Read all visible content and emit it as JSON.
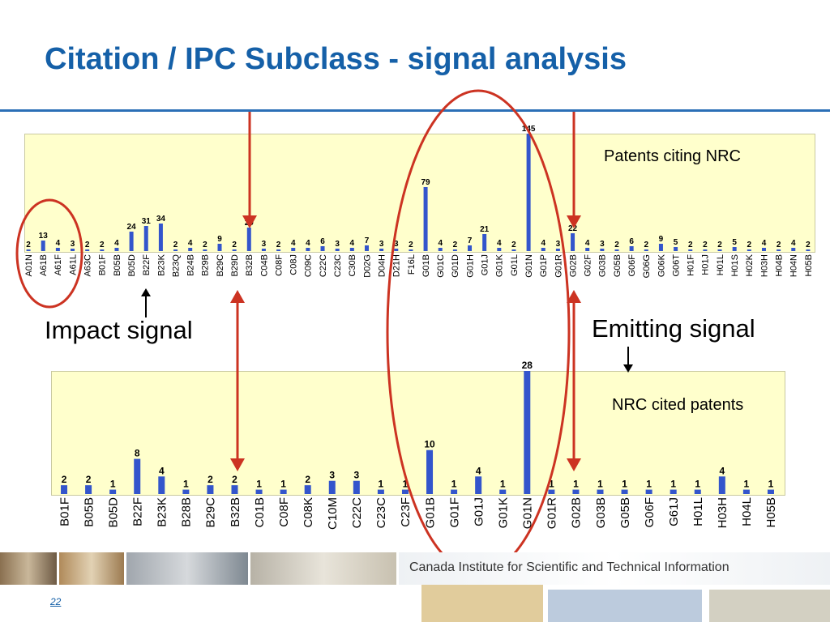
{
  "slide": {
    "title": "Citation / IPC Subclass - signal analysis",
    "page_number": "22",
    "footer_org": "Canada Institute for Scientific and Technical Information"
  },
  "annotations": {
    "impact_signal": "Impact signal",
    "emitting_signal": "Emitting signal"
  },
  "colors": {
    "title": "#1560a8",
    "bar": "#3355cc",
    "plot_bg": "#ffffcc",
    "highlight": "#cc3322"
  },
  "chart_data": [
    {
      "type": "bar",
      "title": "Patents citing NRC",
      "categories": [
        "A01N",
        "A61B",
        "A61F",
        "A61L",
        "A63C",
        "B01F",
        "B05B",
        "B05D",
        "B22F",
        "B23K",
        "B23Q",
        "B24B",
        "B29B",
        "B29C",
        "B29D",
        "B32B",
        "C04B",
        "C08F",
        "C08J",
        "C09C",
        "C22C",
        "C23C",
        "C30B",
        "D02G",
        "D04H",
        "D21H",
        "F16L",
        "G01B",
        "G01C",
        "G01D",
        "G01H",
        "G01J",
        "G01K",
        "G01L",
        "G01N",
        "G01P",
        "G01R",
        "G02B",
        "G02F",
        "G03B",
        "G05B",
        "G06F",
        "G06G",
        "G06K",
        "G06T",
        "H01F",
        "H01J",
        "H01L",
        "H01S",
        "H02K",
        "H03H",
        "H04B",
        "H04N",
        "H05B"
      ],
      "values": [
        2,
        13,
        4,
        3,
        2,
        2,
        4,
        24,
        31,
        34,
        2,
        4,
        2,
        9,
        2,
        29,
        3,
        2,
        4,
        4,
        6,
        3,
        4,
        7,
        3,
        3,
        2,
        79,
        4,
        2,
        7,
        21,
        4,
        2,
        145,
        4,
        3,
        22,
        4,
        3,
        2,
        6,
        2,
        9,
        5,
        2,
        2,
        2,
        5,
        2,
        4,
        2,
        4,
        2
      ],
      "ylim": [
        0,
        145
      ],
      "legend": "none",
      "grid": false
    },
    {
      "type": "bar",
      "title": "NRC cited patents",
      "categories": [
        "B01F",
        "B05B",
        "B05D",
        "B22F",
        "B23K",
        "B28B",
        "B29C",
        "B32B",
        "C01B",
        "C08F",
        "C08K",
        "C10M",
        "C22C",
        "C23C",
        "C23F",
        "G01B",
        "G01F",
        "G01J",
        "G01K",
        "G01N",
        "G01R",
        "G02B",
        "G03B",
        "G05B",
        "G06F",
        "G61J",
        "H01L",
        "H03H",
        "H04L",
        "H05B"
      ],
      "values": [
        2,
        2,
        1,
        8,
        4,
        1,
        2,
        2,
        1,
        1,
        2,
        3,
        3,
        1,
        1,
        10,
        1,
        4,
        1,
        28,
        1,
        1,
        1,
        1,
        1,
        1,
        1,
        4,
        1,
        1
      ],
      "ylim": [
        0,
        28
      ],
      "legend": "none",
      "grid": false
    }
  ]
}
